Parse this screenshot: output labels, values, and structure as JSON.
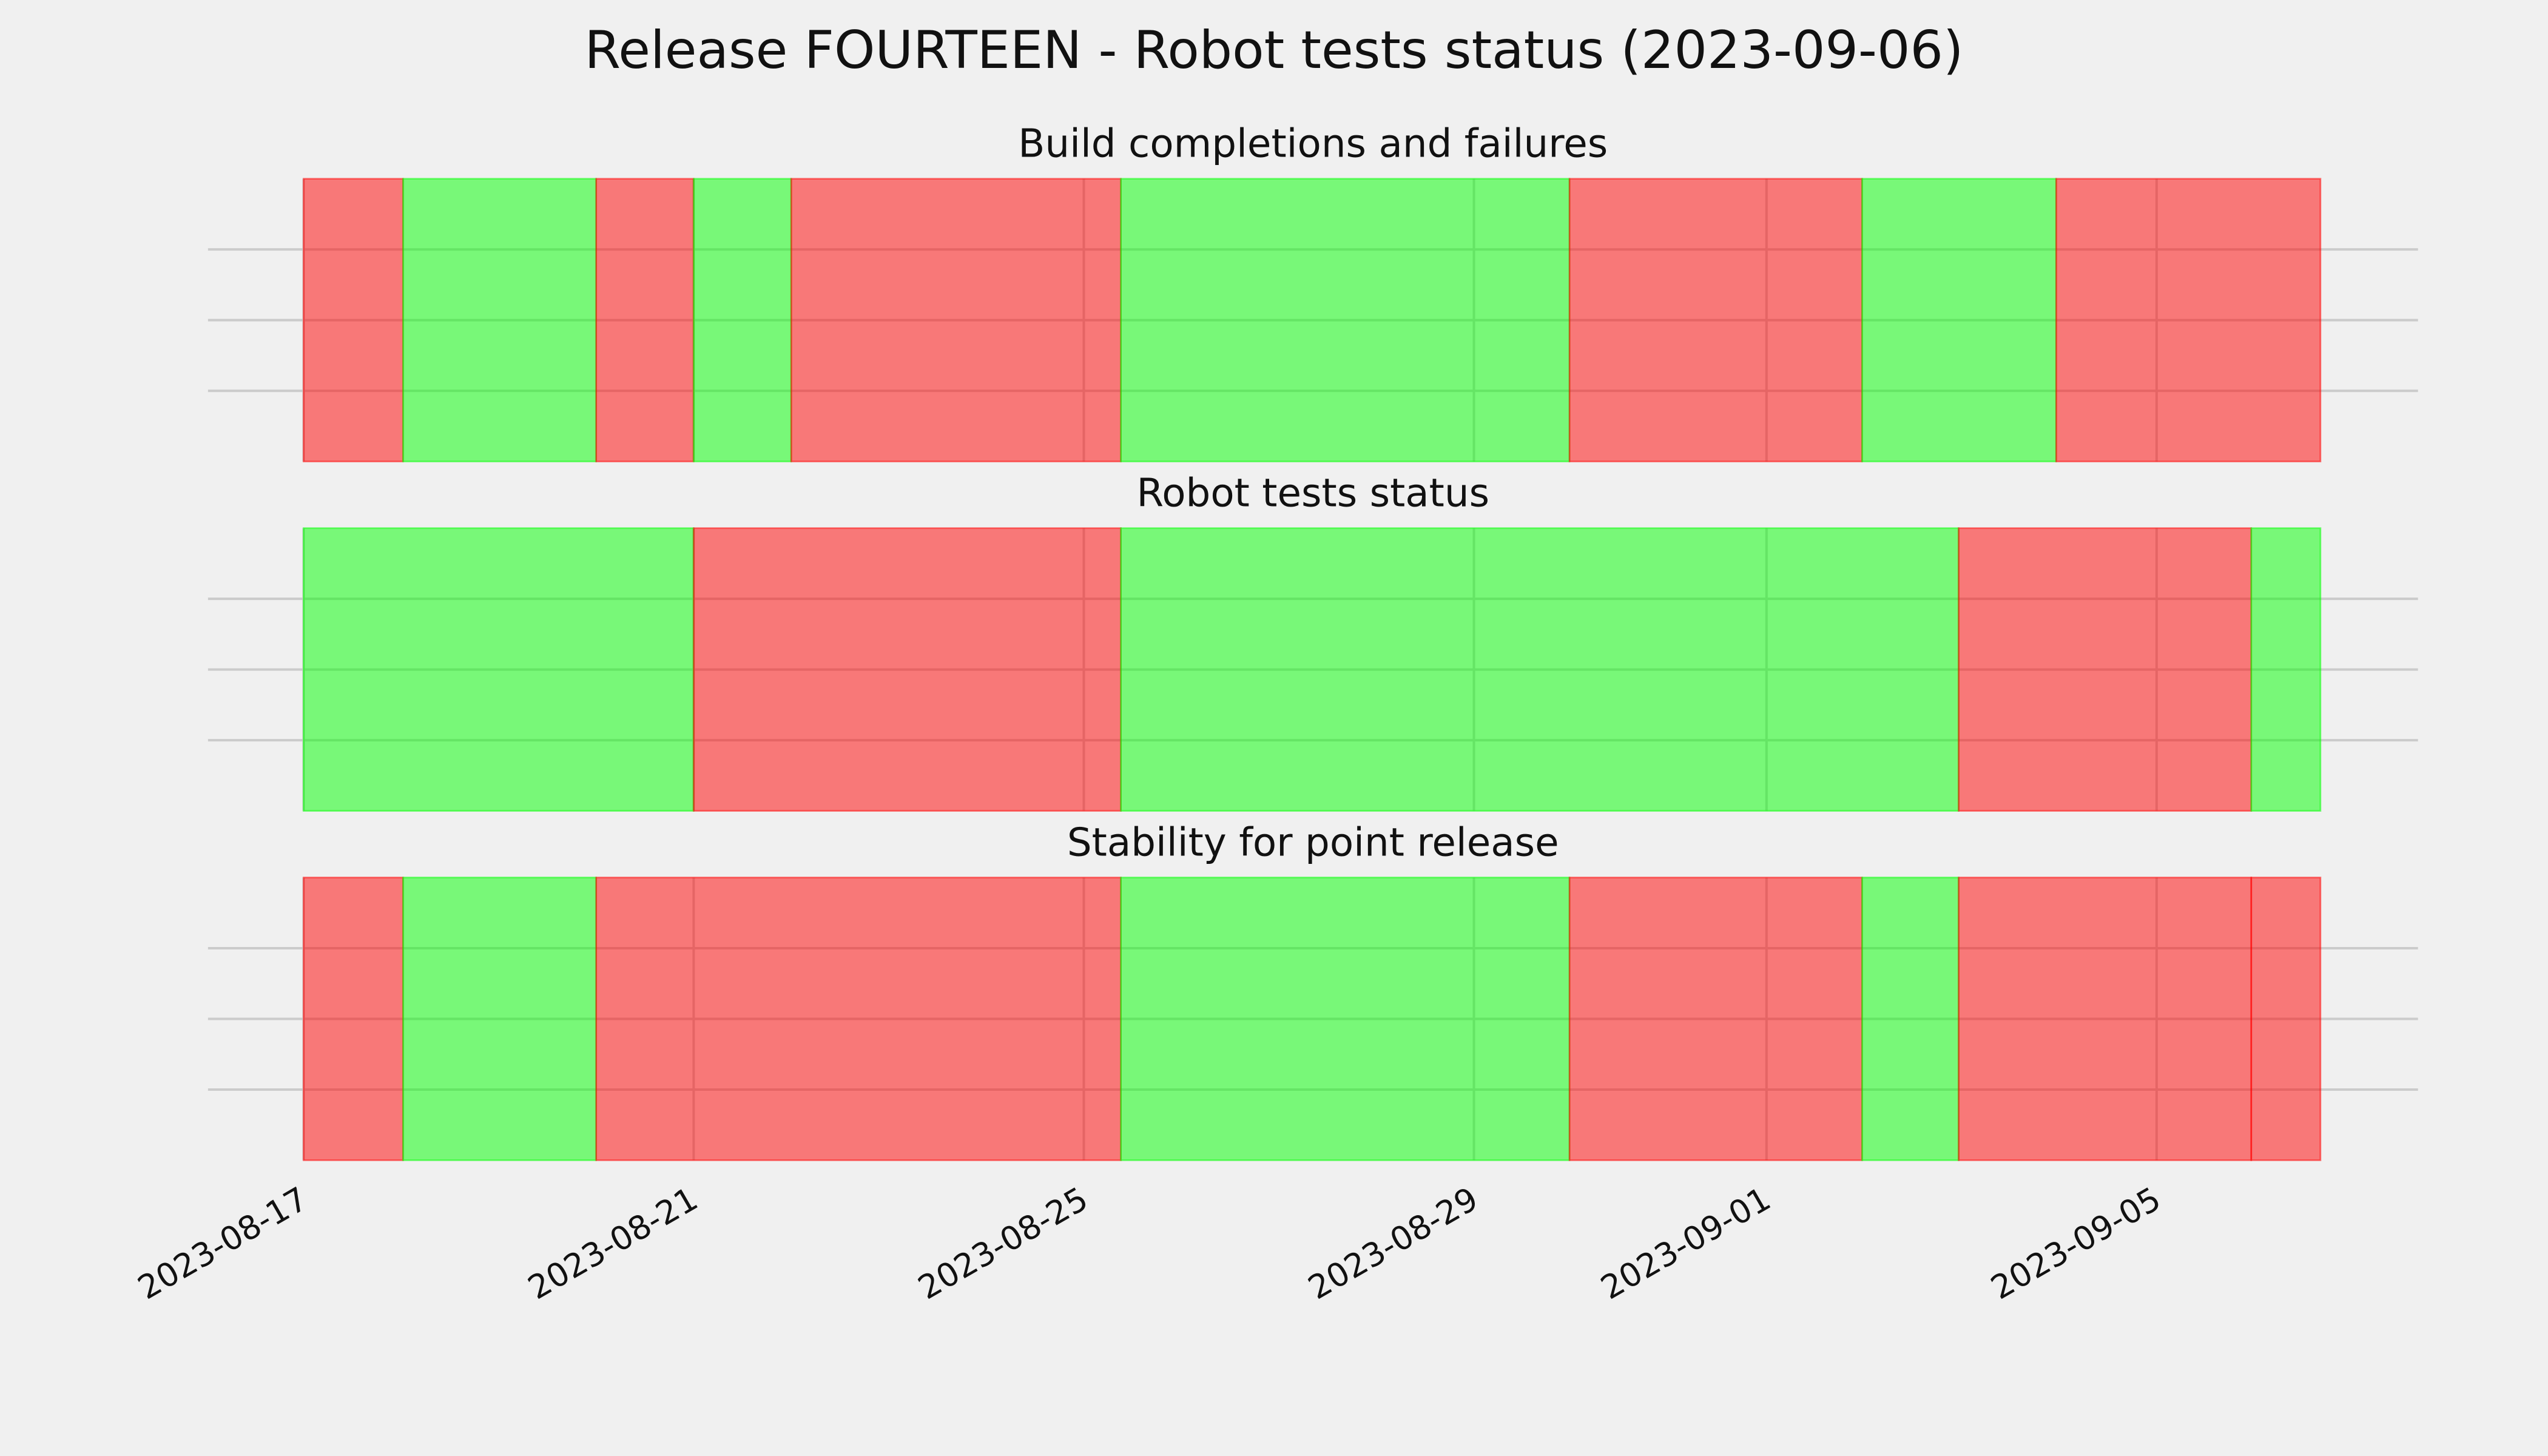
{
  "chart_data": {
    "type": "timeline",
    "title": "Release FOURTEEN - Robot tests status (2023-09-06)",
    "xlim": [
      -0.98,
      21.68
    ],
    "xticks": [
      {
        "value": 0,
        "label": "2023-08-17"
      },
      {
        "value": 4,
        "label": "2023-08-21"
      },
      {
        "value": 8,
        "label": "2023-08-25"
      },
      {
        "value": 12,
        "label": "2023-08-29"
      },
      {
        "value": 15,
        "label": "2023-09-01"
      },
      {
        "value": 19,
        "label": "2023-09-05"
      }
    ],
    "ylim": [
      0,
      1
    ],
    "yticks": [
      0.25,
      0.5,
      0.75
    ],
    "grid": true,
    "fail_color": "#ff0000",
    "pass_color": "#00ff00",
    "panels": [
      {
        "title": "Build completions and failures",
        "bins": [
          0,
          1.02,
          3.0,
          4.0,
          5.0,
          8.38,
          12.98,
          15.98,
          17.97,
          20.68
        ],
        "values": [
          0,
          1,
          0,
          1,
          0,
          1,
          0,
          1,
          0
        ]
      },
      {
        "title": "Robot tests status",
        "bins": [
          0,
          4.0,
          8.38,
          16.97,
          19.97,
          20.68
        ],
        "values": [
          1,
          0,
          1,
          0,
          1
        ]
      },
      {
        "title": "Stability for point release",
        "bins": [
          0,
          1.02,
          3.0,
          8.38,
          12.98,
          15.98,
          16.97,
          19.97,
          20.68
        ],
        "values": [
          0,
          1,
          0,
          1,
          0,
          1,
          0,
          0
        ]
      }
    ]
  }
}
